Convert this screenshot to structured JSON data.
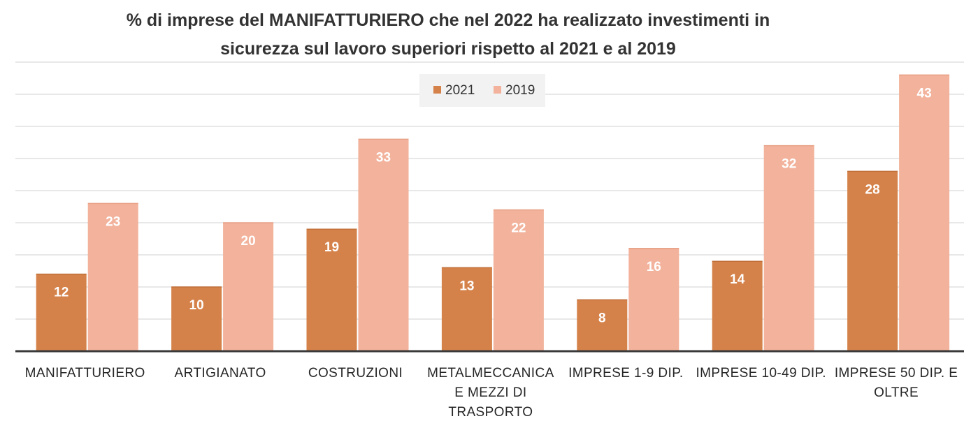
{
  "chart_data": {
    "type": "bar",
    "title_lines": [
      "% di imprese del MANIFATTURIERO che nel 2022 ha realizzato investimenti in",
      "sicurezza sul lavoro superiori rispetto al 2021 e al 2019"
    ],
    "categories": [
      [
        "MANIFATTURIERO"
      ],
      [
        "ARTIGIANATO"
      ],
      [
        "COSTRUZIONI"
      ],
      [
        "METALMECCANICA",
        "E MEZZI DI",
        "TRASPORTO"
      ],
      [
        "IMPRESE 1-9 DIP."
      ],
      [
        "IMPRESE 10-49 DIP."
      ],
      [
        "IMPRESE 50 DIP. E",
        "OLTRE"
      ]
    ],
    "series": [
      {
        "name": "2021",
        "color": "#d5824a",
        "values": [
          12,
          10,
          19,
          13,
          8,
          14,
          28
        ]
      },
      {
        "name": "2019",
        "color": "#f2b29b",
        "values": [
          23,
          20,
          33,
          22,
          16,
          32,
          43
        ]
      }
    ],
    "ylim": [
      0,
      45
    ],
    "grid": true,
    "legend_position": "top-center",
    "xlabel": "",
    "ylabel": ""
  }
}
